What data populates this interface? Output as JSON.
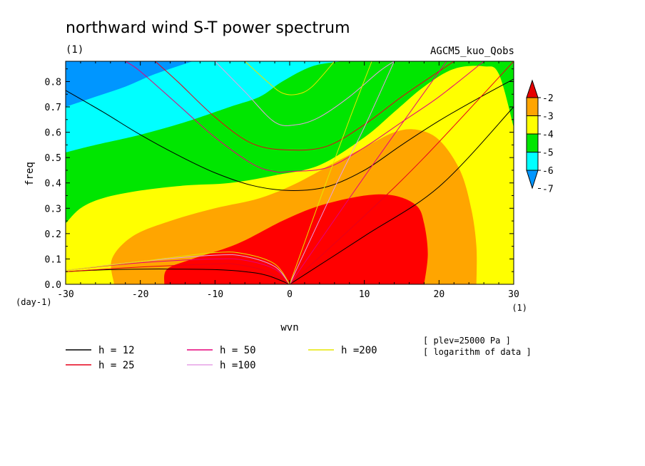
{
  "chart_data": {
    "type": "heatmap",
    "title": "northward wind S-T power spectrum",
    "units_left": "(1)",
    "model_label": "AGCM5_kuo_Qobs",
    "xlabel": "wvn",
    "ylabel": "freq",
    "x_units": "(1)",
    "y_units": "(day-1)",
    "xlim": [
      -30,
      30
    ],
    "ylim": [
      0,
      0.88
    ],
    "x_ticks": [
      -30,
      -20,
      -10,
      0,
      10,
      20,
      30
    ],
    "x_tick_labels": [
      "-30",
      "-20",
      "-10",
      "0",
      "10",
      "20",
      "30"
    ],
    "y_ticks": [
      0,
      0.1,
      0.2,
      0.3,
      0.4,
      0.5,
      0.6,
      0.7,
      0.8
    ],
    "y_tick_labels": [
      "0.0",
      "0.1",
      "0.2",
      "0.3",
      "0.4",
      "0.5",
      "0.6",
      "0.7",
      "0.8"
    ],
    "colorbar": {
      "levels": [
        -2,
        -3,
        -4,
        -5,
        -6,
        -7
      ],
      "labels": [
        "-2",
        "-3",
        "-4",
        "-5",
        "-6",
        "-7"
      ],
      "colors": [
        "#e60000",
        "#ffa500",
        "#ffff00",
        "#00e600",
        "#00ffff",
        "#0096ff"
      ]
    },
    "fill_colors": {
      "gt_-3": "#ff0000",
      "-3_to_-4": "#ffa500",
      "-4_to_-5": "#ffff00",
      "-5_to_-6": "#00e600",
      "-6_to_-7": "#00ffff",
      "lt_-7": "#0096ff"
    },
    "contours": [
      {
        "level": -3,
        "points": [
          [
            -16.8,
            0.0
          ],
          [
            -16.4,
            0.06
          ],
          [
            -13,
            0.1
          ],
          [
            -7,
            0.16
          ],
          [
            -1,
            0.25
          ],
          [
            4,
            0.31
          ],
          [
            10,
            0.35
          ],
          [
            14,
            0.35
          ],
          [
            17,
            0.31
          ],
          [
            18,
            0.24
          ],
          [
            18.5,
            0.12
          ],
          [
            18,
            0.0
          ]
        ]
      },
      {
        "level": -4,
        "points": [
          [
            -23.5,
            0.0
          ],
          [
            -23.8,
            0.1
          ],
          [
            -21,
            0.19
          ],
          [
            -16,
            0.25
          ],
          [
            -10,
            0.3
          ],
          [
            -4,
            0.34
          ],
          [
            1,
            0.4
          ],
          [
            6,
            0.48
          ],
          [
            10,
            0.54
          ],
          [
            14,
            0.6
          ],
          [
            17,
            0.61
          ],
          [
            20,
            0.57
          ],
          [
            22.8,
            0.45
          ],
          [
            24.3,
            0.3
          ],
          [
            25,
            0.15
          ],
          [
            25,
            0.0
          ]
        ]
      },
      {
        "level": -5,
        "points": [
          [
            -30,
            0.24
          ],
          [
            -28,
            0.3
          ],
          [
            -25,
            0.34
          ],
          [
            -20,
            0.37
          ],
          [
            -14,
            0.39
          ],
          [
            -8,
            0.4
          ],
          [
            -2,
            0.43
          ],
          [
            4,
            0.47
          ],
          [
            10,
            0.58
          ],
          [
            14,
            0.68
          ],
          [
            18,
            0.78
          ],
          [
            22,
            0.85
          ],
          [
            26,
            0.86
          ],
          [
            28,
            0.83
          ],
          [
            30,
            0.62
          ]
        ]
      },
      {
        "level": -6,
        "points": [
          [
            -30,
            0.52
          ],
          [
            -26,
            0.55
          ],
          [
            -20,
            0.59
          ],
          [
            -14,
            0.64
          ],
          [
            -8,
            0.7
          ],
          [
            -4,
            0.74
          ],
          [
            -1,
            0.8
          ],
          [
            3,
            0.86
          ],
          [
            7,
            0.88
          ]
        ]
      },
      {
        "level": -7,
        "points": [
          [
            -30,
            0.7
          ],
          [
            -26,
            0.74
          ],
          [
            -22,
            0.78
          ],
          [
            -18,
            0.83
          ],
          [
            -13,
            0.88
          ]
        ]
      }
    ],
    "series": [
      {
        "name": "h = 12",
        "color": "#000000",
        "lines": [
          [
            [
              -30,
              0.765
            ],
            [
              -25,
              0.68
            ],
            [
              -20,
              0.59
            ],
            [
              -15,
              0.51
            ],
            [
              -10,
              0.44
            ],
            [
              -5,
              0.39
            ],
            [
              0,
              0.37
            ],
            [
              5,
              0.385
            ],
            [
              10,
              0.45
            ],
            [
              15,
              0.55
            ],
            [
              20,
              0.645
            ],
            [
              25,
              0.73
            ],
            [
              30,
              0.81
            ]
          ],
          [
            [
              -30,
              0.05
            ],
            [
              -25,
              0.057
            ],
            [
              -20,
              0.06
            ],
            [
              -15,
              0.06
            ],
            [
              -10,
              0.058
            ],
            [
              -6,
              0.05
            ],
            [
              -3,
              0.035
            ],
            [
              0,
              0.0
            ]
          ],
          [
            [
              0,
              0.0
            ],
            [
              10,
              0.19
            ],
            [
              20,
              0.385
            ],
            [
              30,
              0.7
            ]
          ]
        ]
      },
      {
        "name": "h = 25",
        "color": "#e6001a",
        "lines": [
          [
            [
              -18,
              0.88
            ],
            [
              -15,
              0.8
            ],
            [
              -10,
              0.66
            ],
            [
              -5,
              0.555
            ],
            [
              0,
              0.53
            ],
            [
              5,
              0.545
            ],
            [
              10,
              0.63
            ],
            [
              15,
              0.74
            ],
            [
              20,
              0.84
            ],
            [
              22,
              0.88
            ]
          ],
          [
            [
              -30,
              0.05
            ],
            [
              -20,
              0.068
            ],
            [
              -10,
              0.08
            ],
            [
              -7,
              0.078
            ],
            [
              -3,
              0.05
            ],
            [
              0,
              0.0
            ]
          ],
          [
            [
              0,
              0.0
            ],
            [
              10,
              0.27
            ],
            [
              18,
              0.5
            ],
            [
              30,
              0.88
            ]
          ]
        ]
      },
      {
        "name": "h = 50",
        "color": "#e6007a",
        "lines": [
          [
            [
              -22,
              0.88
            ],
            [
              -20,
              0.84
            ],
            [
              -15,
              0.71
            ],
            [
              -10,
              0.58
            ],
            [
              -5,
              0.475
            ],
            [
              -2,
              0.445
            ],
            [
              0,
              0.445
            ],
            [
              5,
              0.46
            ],
            [
              10,
              0.54
            ],
            [
              15,
              0.64
            ],
            [
              20,
              0.74
            ],
            [
              26,
              0.88
            ]
          ],
          [
            [
              -30,
              0.055
            ],
            [
              -20,
              0.085
            ],
            [
              -10,
              0.1
            ],
            [
              -6,
              0.095
            ],
            [
              -2,
              0.06
            ],
            [
              0,
              0.0
            ]
          ],
          [
            [
              0,
              0.0
            ],
            [
              8,
              0.34
            ],
            [
              13,
              0.55
            ],
            [
              21,
              0.88
            ]
          ]
        ]
      },
      {
        "name": "h =100",
        "color": "#e6a0e6",
        "lines": [
          [
            [
              -10,
              0.88
            ],
            [
              -6,
              0.76
            ],
            [
              -2,
              0.64
            ],
            [
              1,
              0.63
            ],
            [
              4,
              0.66
            ],
            [
              8,
              0.74
            ],
            [
              12,
              0.84
            ],
            [
              14,
              0.88
            ]
          ],
          [
            [
              -30,
              0.055
            ],
            [
              -20,
              0.09
            ],
            [
              -10,
              0.115
            ],
            [
              -6,
              0.11
            ],
            [
              -2,
              0.07
            ],
            [
              0,
              0.0
            ]
          ],
          [
            [
              0,
              0.0
            ],
            [
              6,
              0.38
            ],
            [
              10,
              0.62
            ],
            [
              14,
              0.88
            ]
          ]
        ]
      },
      {
        "name": "h =200",
        "color": "#e6e600",
        "lines": [
          [
            [
              -6,
              0.88
            ],
            [
              -3,
              0.8
            ],
            [
              -1,
              0.755
            ],
            [
              1,
              0.75
            ],
            [
              3,
              0.78
            ],
            [
              6,
              0.88
            ]
          ],
          [
            [
              -30,
              0.055
            ],
            [
              -20,
              0.09
            ],
            [
              -10,
              0.125
            ],
            [
              -6,
              0.12
            ],
            [
              -2,
              0.08
            ],
            [
              0,
              0.0
            ]
          ],
          [
            [
              0,
              0.0
            ],
            [
              4,
              0.33
            ],
            [
              8,
              0.65
            ],
            [
              11,
              0.88
            ]
          ]
        ]
      }
    ],
    "annotations": [
      "[ plev=25000 Pa ]",
      "[ logarithm of data ]"
    ],
    "legend_placement": "bottom-left",
    "grid": false
  }
}
